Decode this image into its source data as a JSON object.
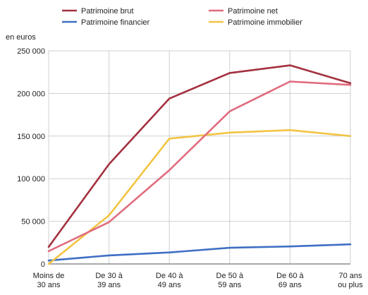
{
  "chart_data": {
    "type": "line",
    "ylabel": "en euros",
    "categories": [
      [
        "Moins de",
        "30 ans"
      ],
      [
        "De 30 à",
        "39 ans"
      ],
      [
        "De 40 à",
        "49 ans"
      ],
      [
        "De 50 à",
        "59 ans"
      ],
      [
        "De 60 à",
        "69 ans"
      ],
      [
        "70 ans",
        "ou plus"
      ]
    ],
    "ylim": [
      0,
      250000
    ],
    "y_ticks": [
      0,
      50000,
      100000,
      150000,
      200000,
      250000
    ],
    "y_tick_labels": [
      "0",
      "50 000",
      "100 000",
      "150 000",
      "200 000",
      "250 000"
    ],
    "grid": true,
    "legend_position": "top",
    "series": [
      {
        "name": "Patrimoine brut",
        "color": "#a3303f",
        "values": [
          20000,
          117000,
          194000,
          224000,
          233000,
          212000
        ]
      },
      {
        "name": "Patrimoine net",
        "color": "#e06b7d",
        "values": [
          15000,
          49000,
          110000,
          179000,
          214000,
          210000
        ]
      },
      {
        "name": "Patrimoine financier",
        "color": "#3f6fc4",
        "values": [
          4000,
          10000,
          13500,
          19000,
          20500,
          23000
        ]
      },
      {
        "name": "Patrimoine immobilier",
        "color": "#f3c443",
        "values": [
          0,
          57000,
          147000,
          154000,
          157000,
          150000
        ]
      }
    ]
  }
}
